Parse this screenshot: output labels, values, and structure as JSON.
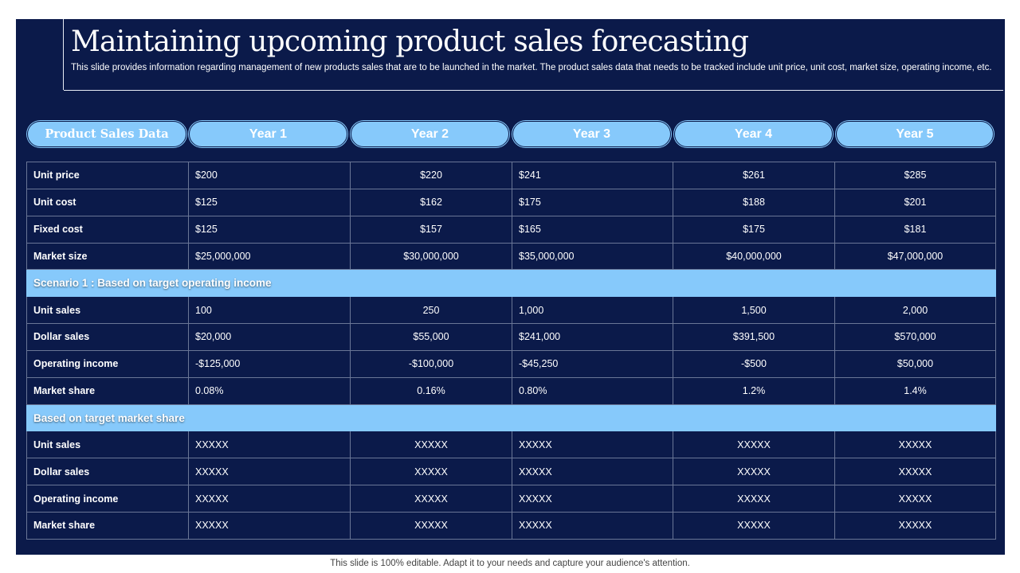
{
  "title": "Maintaining upcoming product sales forecasting",
  "subtitle": "This slide provides information regarding management of new products sales that are to be launched in the market. The product sales data that needs to be tracked include unit price, unit cost, market size, operating income, etc.",
  "header_pills": [
    "Product Sales Data",
    "Year 1",
    "Year 2",
    "Year 3",
    "Year 4",
    "Year 5"
  ],
  "rows_top": [
    {
      "label": "Unit price",
      "values": [
        "$200",
        "$220",
        "$241",
        "$261",
        "$285"
      ]
    },
    {
      "label": "Unit cost",
      "values": [
        "$125",
        "$162",
        "$175",
        "$188",
        "$201"
      ]
    },
    {
      "label": "Fixed cost",
      "values": [
        "$125",
        "$157",
        "$165",
        "$175",
        "$181"
      ]
    },
    {
      "label": "Market size",
      "values": [
        "$25,000,000",
        "$30,000,000",
        "$35,000,000",
        "$40,000,000",
        "$47,000,000"
      ]
    }
  ],
  "scenario1_label": "Scenario 1 : Based on target operating income",
  "rows_scenario1": [
    {
      "label": "Unit sales",
      "values": [
        "100",
        "250",
        "1,000",
        "1,500",
        "2,000"
      ]
    },
    {
      "label": "Dollar sales",
      "values": [
        "$20,000",
        "$55,000",
        "$241,000",
        "$391,500",
        "$570,000"
      ]
    },
    {
      "label": "Operating income",
      "values": [
        "-$125,000",
        "-$100,000",
        "-$45,250",
        "-$500",
        "$50,000"
      ]
    },
    {
      "label": "Market share",
      "values": [
        "0.08%",
        "0.16%",
        "0.80%",
        "1.2%",
        "1.4%"
      ]
    }
  ],
  "scenario2_label": "Based on target market share",
  "rows_scenario2": [
    {
      "label": "Unit sales",
      "values": [
        "XXXXX",
        "XXXXX",
        "XXXXX",
        "XXXXX",
        "XXXXX"
      ]
    },
    {
      "label": "Dollar sales",
      "values": [
        "XXXXX",
        "XXXXX",
        "XXXXX",
        "XXXXX",
        "XXXXX"
      ]
    },
    {
      "label": "Operating income",
      "values": [
        "XXXXX",
        "XXXXX",
        "XXXXX",
        "XXXXX",
        "XXXXX"
      ]
    },
    {
      "label": "Market share",
      "values": [
        "XXXXX",
        "XXXXX",
        "XXXXX",
        "XXXXX",
        "XXXXX"
      ]
    }
  ],
  "footer": "This slide is 100% editable. Adapt it to your needs and capture your audience's attention.",
  "colors": {
    "background": "#0b1a4a",
    "accent": "#86c9fb",
    "grid": "#6a7696"
  }
}
